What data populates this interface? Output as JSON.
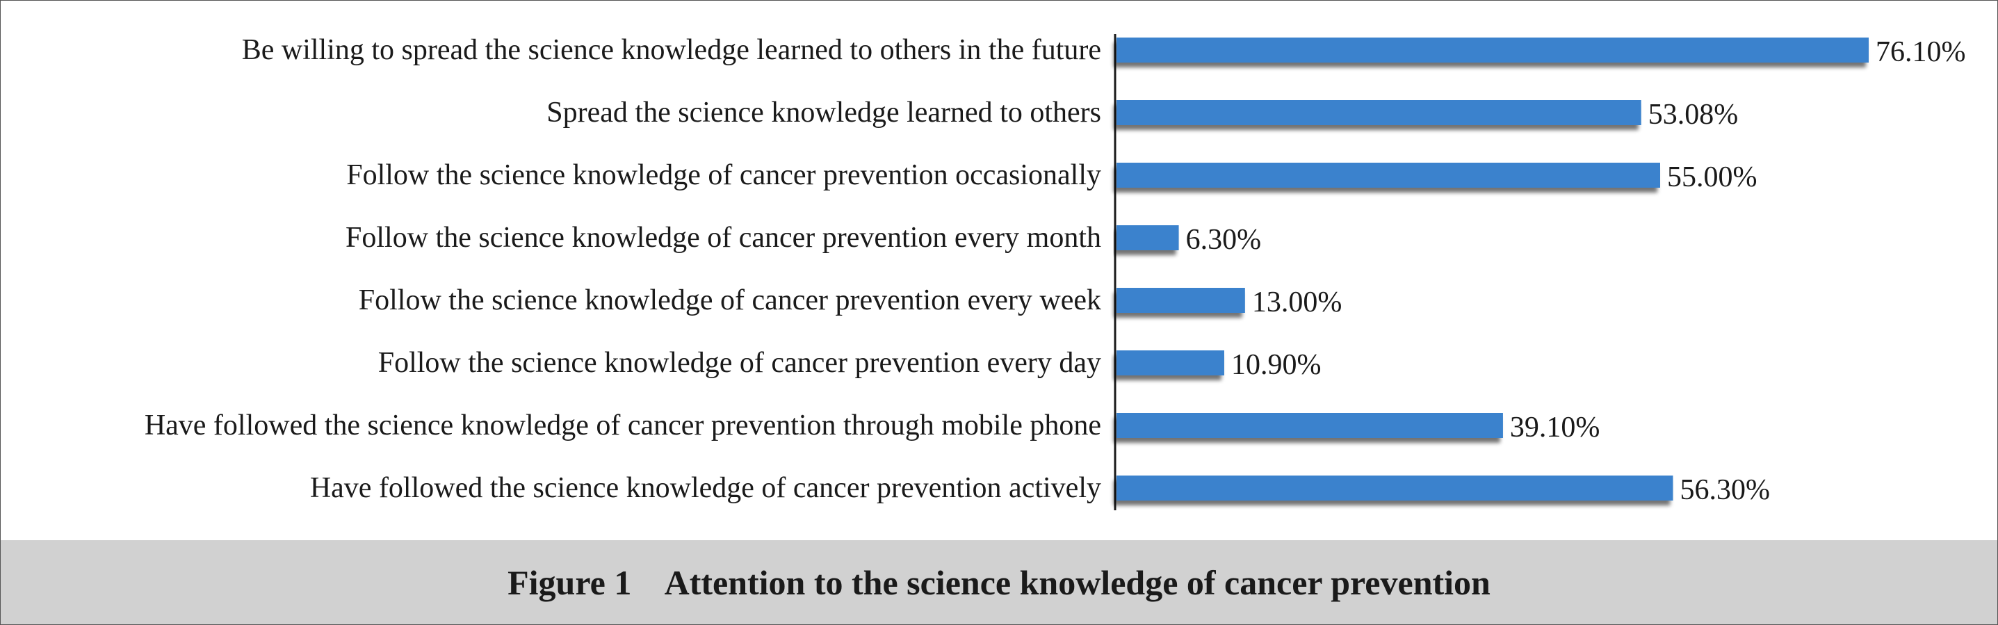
{
  "chart_data": {
    "type": "bar",
    "orientation": "horizontal",
    "categories": [
      "Be willing to spread the science knowledge learned to others in the future",
      "Spread the science knowledge learned to others",
      "Follow the science knowledge of cancer prevention occasionally",
      "Follow the science knowledge of cancer prevention every month",
      "Follow the science knowledge of cancer prevention every week",
      "Follow the science knowledge of cancer prevention every day",
      "Have followed the science knowledge of cancer prevention through mobile phone",
      "Have followed the science knowledge of cancer prevention actively"
    ],
    "values": [
      76.1,
      53.08,
      55.0,
      6.3,
      13.0,
      10.9,
      39.1,
      56.3
    ],
    "value_labels": [
      "76.10%",
      "53.08%",
      "55.00%",
      "6.30%",
      "13.00%",
      "10.90%",
      "39.10%",
      "56.30%"
    ],
    "xlim": [
      0,
      76.1
    ],
    "grid": false,
    "legend": "none",
    "bar_color": "#3a82cd",
    "bar_shadow_color": "#555555"
  },
  "caption": {
    "text": "Figure 1    Attention to the science knowledge of cancer prevention"
  }
}
